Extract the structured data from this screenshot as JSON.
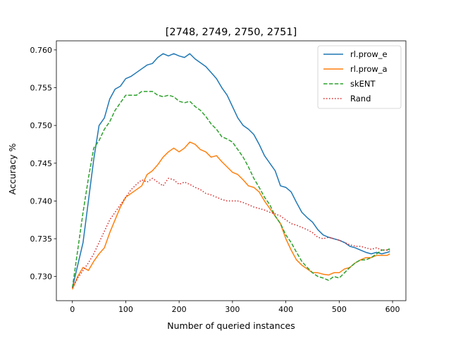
{
  "chart_data": {
    "type": "line",
    "title": "[2748, 2749, 2750, 2751]",
    "xlabel": "Number of queried instances",
    "ylabel": "Accuracy %",
    "xlim": [
      -30,
      625
    ],
    "ylim": [
      0.7268,
      0.7612
    ],
    "xticks": [
      0,
      100,
      200,
      300,
      400,
      500,
      600
    ],
    "yticks": [
      0.73,
      0.735,
      0.74,
      0.745,
      0.75,
      0.755,
      0.76
    ],
    "xtick_labels": [
      "0",
      "100",
      "200",
      "300",
      "400",
      "500",
      "600"
    ],
    "ytick_labels": [
      "0.730",
      "0.735",
      "0.740",
      "0.745",
      "0.750",
      "0.755",
      "0.760"
    ],
    "grid": false,
    "legend_position": "top-right",
    "series": [
      {
        "name": "rl.prow_e",
        "color": "#1f77b4",
        "style": "solid",
        "x": [
          0,
          10,
          20,
          30,
          40,
          50,
          60,
          70,
          80,
          90,
          100,
          110,
          120,
          130,
          140,
          150,
          160,
          170,
          180,
          190,
          200,
          210,
          220,
          230,
          240,
          250,
          260,
          270,
          280,
          290,
          300,
          310,
          320,
          330,
          340,
          350,
          360,
          370,
          380,
          390,
          400,
          410,
          420,
          430,
          440,
          450,
          460,
          470,
          480,
          490,
          500,
          510,
          520,
          530,
          540,
          550,
          560,
          570,
          580,
          590,
          595
        ],
        "values": [
          0.7285,
          0.7315,
          0.7345,
          0.74,
          0.7455,
          0.75,
          0.751,
          0.7535,
          0.7548,
          0.7552,
          0.7562,
          0.7565,
          0.757,
          0.7575,
          0.758,
          0.7582,
          0.759,
          0.7595,
          0.7592,
          0.7595,
          0.7592,
          0.759,
          0.7595,
          0.7588,
          0.7583,
          0.7578,
          0.757,
          0.7562,
          0.755,
          0.754,
          0.7525,
          0.751,
          0.75,
          0.7495,
          0.7488,
          0.7475,
          0.746,
          0.745,
          0.744,
          0.742,
          0.7418,
          0.7412,
          0.7398,
          0.7385,
          0.7378,
          0.7372,
          0.7362,
          0.7355,
          0.7352,
          0.735,
          0.7348,
          0.7345,
          0.734,
          0.7338,
          0.7335,
          0.7332,
          0.733,
          0.7332,
          0.733,
          0.7332,
          0.7333
        ]
      },
      {
        "name": "rl.prow_a",
        "color": "#ff7f0e",
        "style": "solid",
        "x": [
          0,
          10,
          20,
          30,
          40,
          50,
          60,
          70,
          80,
          90,
          100,
          110,
          120,
          130,
          140,
          150,
          160,
          170,
          180,
          190,
          200,
          210,
          220,
          230,
          240,
          250,
          260,
          270,
          280,
          290,
          300,
          310,
          320,
          330,
          340,
          350,
          360,
          370,
          380,
          390,
          400,
          410,
          420,
          430,
          440,
          450,
          460,
          470,
          480,
          490,
          500,
          510,
          520,
          530,
          540,
          550,
          560,
          570,
          580,
          590,
          595
        ],
        "values": [
          0.7283,
          0.73,
          0.7312,
          0.7308,
          0.732,
          0.733,
          0.7338,
          0.7358,
          0.7375,
          0.7392,
          0.7405,
          0.741,
          0.7415,
          0.742,
          0.7435,
          0.744,
          0.7448,
          0.7458,
          0.7465,
          0.747,
          0.7465,
          0.747,
          0.7478,
          0.7475,
          0.7468,
          0.7465,
          0.7458,
          0.746,
          0.7452,
          0.7445,
          0.7438,
          0.7435,
          0.7428,
          0.742,
          0.7418,
          0.7412,
          0.74,
          0.739,
          0.738,
          0.737,
          0.735,
          0.7335,
          0.7322,
          0.7315,
          0.731,
          0.7305,
          0.7305,
          0.7303,
          0.7302,
          0.7305,
          0.7305,
          0.731,
          0.7312,
          0.7318,
          0.7322,
          0.7325,
          0.7325,
          0.7328,
          0.7328,
          0.7328,
          0.733
        ]
      },
      {
        "name": "skENT",
        "color": "#2ca02c",
        "style": "dashed",
        "x": [
          0,
          10,
          20,
          30,
          40,
          50,
          60,
          70,
          80,
          90,
          100,
          110,
          120,
          130,
          140,
          150,
          160,
          170,
          180,
          190,
          200,
          210,
          220,
          230,
          240,
          250,
          260,
          270,
          280,
          290,
          300,
          310,
          320,
          330,
          340,
          350,
          360,
          370,
          380,
          390,
          400,
          410,
          420,
          430,
          440,
          450,
          460,
          470,
          480,
          490,
          500,
          510,
          520,
          530,
          540,
          550,
          560,
          570,
          580,
          590,
          595
        ],
        "values": [
          0.7285,
          0.7335,
          0.7385,
          0.743,
          0.747,
          0.748,
          0.7495,
          0.7505,
          0.752,
          0.753,
          0.754,
          0.754,
          0.754,
          0.7545,
          0.7545,
          0.7545,
          0.754,
          0.7538,
          0.754,
          0.7538,
          0.7532,
          0.753,
          0.7532,
          0.7525,
          0.752,
          0.7512,
          0.7502,
          0.7495,
          0.7485,
          0.7482,
          0.7478,
          0.7468,
          0.7458,
          0.7445,
          0.743,
          0.7418,
          0.7405,
          0.7395,
          0.738,
          0.737,
          0.7355,
          0.7345,
          0.7332,
          0.732,
          0.7312,
          0.7305,
          0.73,
          0.7298,
          0.7295,
          0.73,
          0.7298,
          0.7305,
          0.7312,
          0.7318,
          0.7322,
          0.7322,
          0.7325,
          0.733,
          0.7335,
          0.7335,
          0.7337
        ]
      },
      {
        "name": "Rand",
        "color": "#d62728",
        "style": "dotted",
        "x": [
          0,
          10,
          20,
          30,
          40,
          50,
          60,
          70,
          80,
          90,
          100,
          110,
          120,
          130,
          140,
          150,
          160,
          170,
          180,
          190,
          200,
          210,
          220,
          230,
          240,
          250,
          260,
          270,
          280,
          290,
          300,
          310,
          320,
          330,
          340,
          350,
          360,
          370,
          380,
          390,
          400,
          410,
          420,
          430,
          440,
          450,
          460,
          470,
          480,
          490,
          500,
          510,
          520,
          530,
          540,
          550,
          560,
          570,
          580,
          590,
          595
        ],
        "values": [
          0.7285,
          0.7298,
          0.7308,
          0.7318,
          0.733,
          0.7345,
          0.736,
          0.7375,
          0.7385,
          0.7395,
          0.7405,
          0.7415,
          0.7422,
          0.7428,
          0.7425,
          0.743,
          0.7425,
          0.742,
          0.743,
          0.7428,
          0.7422,
          0.7425,
          0.7422,
          0.7418,
          0.7415,
          0.741,
          0.7408,
          0.7405,
          0.7402,
          0.74,
          0.74,
          0.74,
          0.7398,
          0.7395,
          0.7392,
          0.739,
          0.7388,
          0.7385,
          0.7383,
          0.738,
          0.7375,
          0.737,
          0.7368,
          0.7365,
          0.7362,
          0.7358,
          0.7352,
          0.735,
          0.7352,
          0.735,
          0.7348,
          0.7345,
          0.7342,
          0.734,
          0.734,
          0.7338,
          0.7336,
          0.7338,
          0.7335,
          0.7335,
          0.7335
        ]
      }
    ]
  }
}
